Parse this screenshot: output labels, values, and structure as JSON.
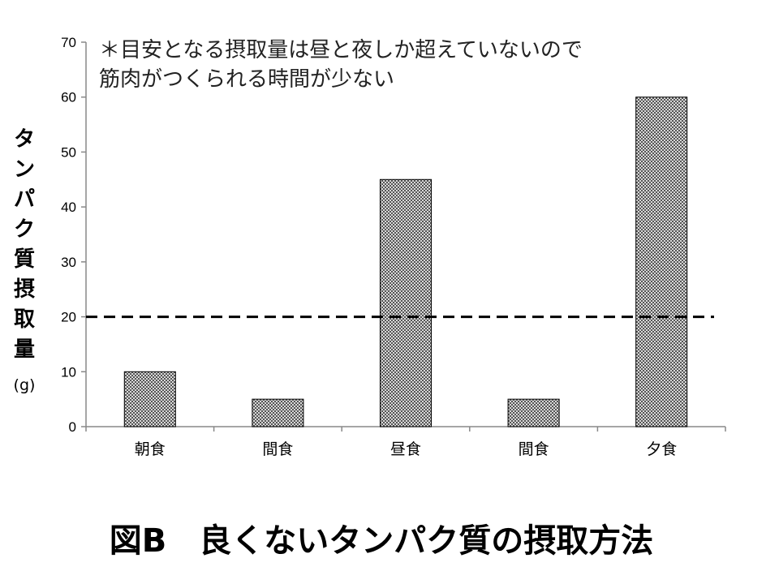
{
  "chart_data": {
    "type": "bar",
    "title": "図B　良くないタンパク質の摂取方法",
    "annotation": [
      "＊目安となる摂取量は昼と夜しか超えていないので",
      "筋肉がつくられる時間が少ない"
    ],
    "ylabel": "タンパク質摂取量",
    "yunit": "(g)",
    "xlabel": "",
    "categories": [
      "朝食",
      "間食",
      "昼食",
      "間食",
      "夕食"
    ],
    "values": [
      10,
      5,
      45,
      5,
      60
    ],
    "ylim": [
      0,
      70
    ],
    "yticks": [
      0,
      10,
      20,
      30,
      40,
      50,
      60,
      70
    ],
    "reference_line": {
      "value": 20,
      "style": "dashed"
    },
    "grid": false,
    "legend": "none",
    "colors": {
      "bar_fill": "#b8b8b8",
      "bar_stroke": "#000000",
      "axis": "#888888",
      "reference": "#000000"
    }
  }
}
